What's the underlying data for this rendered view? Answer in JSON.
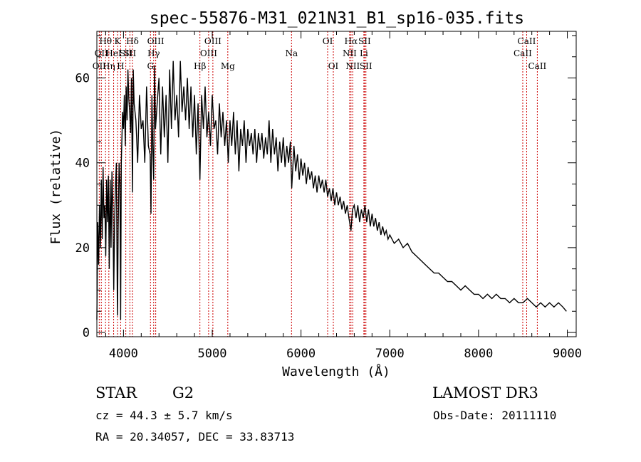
{
  "chart_data": {
    "type": "line",
    "title": "spec-55876-M31_021N31_B1_sp16-035.fits",
    "xlabel": "Wavelength (Å)",
    "ylabel": "Flux (relative)",
    "xlim": [
      3700,
      9100
    ],
    "ylim": [
      -1,
      71
    ],
    "xticks": [
      4000,
      5000,
      6000,
      7000,
      8000,
      9000
    ],
    "xtick_labels": [
      "4000",
      "5000",
      "6000",
      "7000",
      "8000",
      "9000"
    ],
    "yticks": [
      0,
      20,
      40,
      60
    ],
    "ytick_labels": [
      "0",
      "20",
      "40",
      "60"
    ],
    "grid": false,
    "series": [
      {
        "name": "flux",
        "x": [
          3700,
          3710,
          3720,
          3730,
          3740,
          3750,
          3760,
          3770,
          3780,
          3790,
          3800,
          3810,
          3820,
          3830,
          3840,
          3850,
          3860,
          3870,
          3880,
          3890,
          3900,
          3910,
          3920,
          3930,
          3933,
          3940,
          3950,
          3960,
          3968,
          3975,
          3990,
          4000,
          4010,
          4020,
          4030,
          4040,
          4050,
          4060,
          4070,
          4080,
          4090,
          4101,
          4110,
          4120,
          4140,
          4160,
          4180,
          4200,
          4220,
          4240,
          4260,
          4280,
          4300,
          4310,
          4320,
          4330,
          4340,
          4350,
          4360,
          4380,
          4400,
          4420,
          4440,
          4460,
          4480,
          4500,
          4520,
          4540,
          4560,
          4580,
          4600,
          4620,
          4640,
          4660,
          4680,
          4700,
          4720,
          4740,
          4760,
          4780,
          4800,
          4820,
          4840,
          4861,
          4880,
          4900,
          4920,
          4940,
          4960,
          4980,
          5000,
          5020,
          5040,
          5060,
          5080,
          5100,
          5120,
          5140,
          5160,
          5180,
          5200,
          5220,
          5240,
          5260,
          5280,
          5300,
          5320,
          5340,
          5360,
          5380,
          5400,
          5420,
          5440,
          5460,
          5480,
          5500,
          5520,
          5540,
          5560,
          5580,
          5600,
          5620,
          5640,
          5660,
          5680,
          5700,
          5720,
          5740,
          5760,
          5780,
          5800,
          5820,
          5840,
          5860,
          5880,
          5895,
          5920,
          5940,
          5960,
          5980,
          6000,
          6020,
          6040,
          6060,
          6080,
          6100,
          6120,
          6140,
          6160,
          6180,
          6200,
          6220,
          6240,
          6260,
          6280,
          6300,
          6320,
          6340,
          6360,
          6380,
          6400,
          6420,
          6440,
          6460,
          6480,
          6500,
          6520,
          6540,
          6563,
          6580,
          6600,
          6620,
          6640,
          6660,
          6680,
          6700,
          6720,
          6740,
          6760,
          6780,
          6800,
          6820,
          6840,
          6860,
          6880,
          6900,
          6920,
          6940,
          6960,
          6980,
          7000,
          7050,
          7100,
          7150,
          7200,
          7250,
          7300,
          7350,
          7400,
          7450,
          7500,
          7550,
          7600,
          7650,
          7700,
          7750,
          7800,
          7850,
          7900,
          7950,
          8000,
          8050,
          8100,
          8150,
          8200,
          8250,
          8300,
          8350,
          8400,
          8450,
          8500,
          8550,
          8600,
          8650,
          8700,
          8750,
          8800,
          8850,
          8900,
          8950,
          8990
        ],
        "y": [
          3,
          26,
          16,
          30,
          20,
          36,
          22,
          39,
          27,
          30,
          18,
          36,
          26,
          37,
          15,
          36,
          20,
          38,
          30,
          10,
          26,
          35,
          40,
          8,
          4,
          24,
          40,
          35,
          3,
          40,
          52,
          48,
          56,
          44,
          58,
          50,
          62,
          55,
          52,
          47,
          60,
          33,
          62,
          54,
          50,
          40,
          56,
          48,
          50,
          40,
          58,
          44,
          42,
          28,
          56,
          44,
          36,
          63,
          48,
          54,
          60,
          42,
          58,
          46,
          56,
          40,
          62,
          48,
          64,
          50,
          56,
          46,
          64,
          52,
          58,
          50,
          60,
          48,
          58,
          46,
          56,
          42,
          54,
          36,
          56,
          48,
          58,
          46,
          52,
          44,
          56,
          48,
          50,
          42,
          54,
          46,
          52,
          44,
          50,
          40,
          50,
          44,
          52,
          42,
          50,
          38,
          48,
          44,
          50,
          40,
          48,
          44,
          47,
          42,
          48,
          40,
          47,
          43,
          47,
          41,
          46,
          42,
          50,
          40,
          48,
          42,
          46,
          38,
          45,
          40,
          46,
          39,
          44,
          40,
          45,
          34,
          44,
          38,
          42,
          36,
          41,
          37,
          40,
          35,
          39,
          36,
          38,
          34,
          37,
          33,
          37,
          34,
          36,
          33,
          36,
          32,
          34,
          31,
          34,
          30,
          33,
          30,
          32,
          29,
          31,
          28,
          30,
          27,
          24,
          29,
          30,
          27,
          30,
          26,
          29,
          27,
          30,
          26,
          29,
          25,
          28,
          25,
          27,
          24,
          26,
          23,
          25,
          23,
          24,
          22,
          23,
          21,
          22,
          20,
          21,
          19,
          18,
          17,
          16,
          15,
          14,
          14,
          13,
          12,
          12,
          11,
          10,
          11,
          10,
          9,
          9,
          8,
          9,
          8,
          9,
          8,
          8,
          7,
          8,
          7,
          7,
          8,
          7,
          6,
          7,
          6,
          7,
          6,
          7,
          6,
          5
        ]
      }
    ],
    "lines": [
      {
        "wavelength": 3727,
        "label": "OII",
        "row": 3
      },
      {
        "wavelength": 3750,
        "label": "OII",
        "row": 2
      },
      {
        "wavelength": 3798,
        "label": "Hθ",
        "row": 1
      },
      {
        "wavelength": 3835,
        "label": "Hη",
        "row": 3
      },
      {
        "wavelength": 3889,
        "label": "HeI",
        "row": 2
      },
      {
        "wavelength": 3933,
        "label": "K",
        "row": 1
      },
      {
        "wavelength": 3968,
        "label": "H",
        "row": 3
      },
      {
        "wavelength": 4026,
        "label": "SII",
        "row": 2
      },
      {
        "wavelength": 4072,
        "label": "SII",
        "row": 2
      },
      {
        "wavelength": 4101,
        "label": "Hδ",
        "row": 1
      },
      {
        "wavelength": 4304,
        "label": "G",
        "row": 3
      },
      {
        "wavelength": 4340,
        "label": "Hγ",
        "row": 2
      },
      {
        "wavelength": 4363,
        "label": "OIII",
        "row": 1
      },
      {
        "wavelength": 4861,
        "label": "Hβ",
        "row": 3
      },
      {
        "wavelength": 4959,
        "label": "OIII",
        "row": 2
      },
      {
        "wavelength": 5007,
        "label": "OIII",
        "row": 1
      },
      {
        "wavelength": 5175,
        "label": "Mg",
        "row": 3
      },
      {
        "wavelength": 5893,
        "label": "Na",
        "row": 2
      },
      {
        "wavelength": 6300,
        "label": "OI",
        "row": 1
      },
      {
        "wavelength": 6364,
        "label": "OI",
        "row": 3
      },
      {
        "wavelength": 6548,
        "label": "NII",
        "row": 2
      },
      {
        "wavelength": 6563,
        "label": "Hα",
        "row": 1
      },
      {
        "wavelength": 6583,
        "label": "NII",
        "row": 3
      },
      {
        "wavelength": 6708,
        "label": "Li",
        "row": 2
      },
      {
        "wavelength": 6716,
        "label": "SII",
        "row": 1
      },
      {
        "wavelength": 6731,
        "label": "SII",
        "row": 3
      },
      {
        "wavelength": 8498,
        "label": "CaII",
        "row": 2
      },
      {
        "wavelength": 8542,
        "label": "CaII",
        "row": 1
      },
      {
        "wavelength": 8662,
        "label": "CaII",
        "row": 3
      }
    ]
  },
  "info": {
    "object_class": "STAR",
    "subclass": "G2",
    "survey": "LAMOST DR3",
    "redshift": "cz = 44.3 ± 5.7 km/s",
    "obs_date": "Obs-Date: 20111110",
    "coords": "RA =  20.34057, DEC =  33.83713"
  },
  "colors": {
    "axis": "#000000",
    "spectrum": "#000000",
    "line_marker": "#cc0000"
  }
}
